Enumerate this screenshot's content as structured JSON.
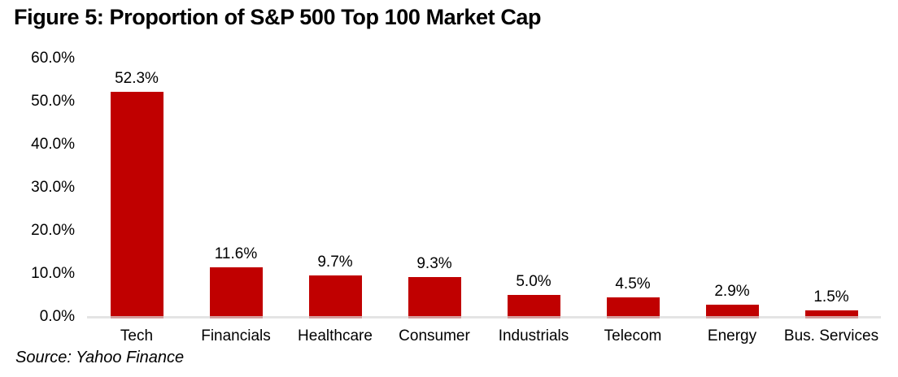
{
  "chart_data": {
    "type": "bar",
    "title": "Figure 5: Proportion of S&P 500 Top 100 Market Cap",
    "categories": [
      "Tech",
      "Financials",
      "Healthcare",
      "Consumer",
      "Industrials",
      "Telecom",
      "Energy",
      "Bus. Services"
    ],
    "values": [
      52.3,
      11.6,
      9.7,
      9.3,
      5.0,
      4.5,
      2.9,
      1.5
    ],
    "value_labels": [
      "52.3%",
      "11.6%",
      "9.7%",
      "9.3%",
      "5.0%",
      "4.5%",
      "2.9%",
      "1.5%"
    ],
    "yticks": [
      "60.0%",
      "50.0%",
      "40.0%",
      "30.0%",
      "20.0%",
      "10.0%",
      "0.0%"
    ],
    "ylim": [
      0,
      60
    ],
    "xlabel": "",
    "ylabel": "",
    "grid": false,
    "legend": "none",
    "bar_color": "#C00000",
    "axis_line_color": "#D9D9D9",
    "text_color": "#000000",
    "source": "Source: Yahoo Finance"
  }
}
